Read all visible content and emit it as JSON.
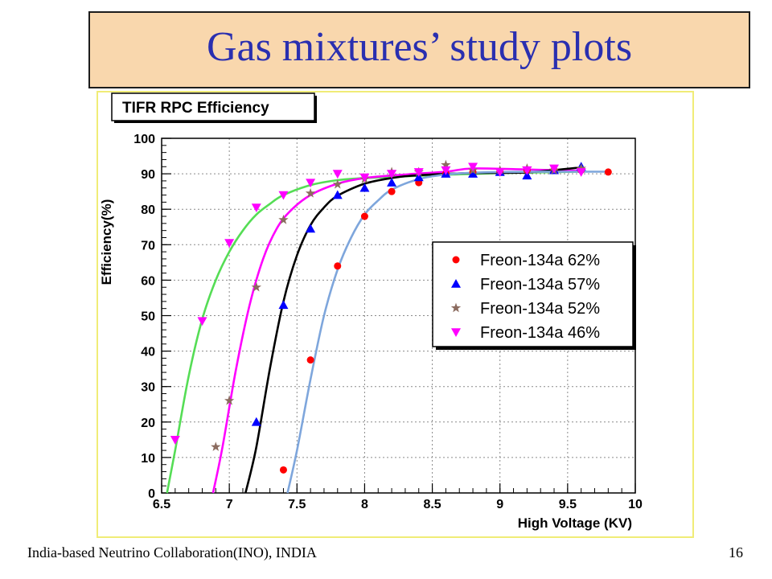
{
  "slide": {
    "title": "Gas mixtures’ study plots",
    "footer": "India-based Neutrino Collaboration(INO), INDIA",
    "page_number": "16"
  },
  "chart_data": {
    "type": "scatter",
    "title": "TIFR RPC Efficiency",
    "xlabel": "High Voltage (KV)",
    "ylabel": "Efficiency(%)",
    "xlim": [
      6.5,
      10
    ],
    "ylim": [
      0,
      100
    ],
    "x_ticks": [
      "6.5",
      "7",
      "7.5",
      "8",
      "8.5",
      "9",
      "9.5",
      "10"
    ],
    "y_ticks": [
      "0",
      "10",
      "20",
      "30",
      "40",
      "50",
      "60",
      "70",
      "80",
      "90",
      "100"
    ],
    "grid": true,
    "legend_position": "center-right",
    "series": [
      {
        "name": "Freon-134a  62%",
        "marker": "circle",
        "marker_color": "#ff0000",
        "fit_color": "#7ea6dc",
        "points": [
          [
            7.4,
            6.5
          ],
          [
            7.6,
            37.5
          ],
          [
            7.8,
            64
          ],
          [
            8.0,
            78
          ],
          [
            8.2,
            85
          ],
          [
            8.4,
            87.5
          ],
          [
            8.6,
            90
          ],
          [
            8.8,
            90.5
          ],
          [
            9.0,
            90.5
          ],
          [
            9.2,
            91
          ],
          [
            9.4,
            91
          ],
          [
            9.6,
            91
          ],
          [
            9.8,
            90.5
          ]
        ],
        "fit": [
          [
            7.43,
            0
          ],
          [
            7.5,
            12
          ],
          [
            7.6,
            32
          ],
          [
            7.7,
            50
          ],
          [
            7.8,
            63
          ],
          [
            7.9,
            72
          ],
          [
            8.0,
            78.5
          ],
          [
            8.1,
            82.5
          ],
          [
            8.2,
            85.5
          ],
          [
            8.4,
            88.5
          ],
          [
            8.6,
            89.8
          ],
          [
            8.8,
            90.3
          ],
          [
            9.0,
            90.5
          ],
          [
            9.5,
            90.6
          ],
          [
            9.8,
            90.6
          ]
        ]
      },
      {
        "name": "Freon-134a  57%",
        "marker": "triangle-up",
        "marker_color": "#0000ff",
        "fit_color": "#000000",
        "points": [
          [
            7.2,
            20
          ],
          [
            7.4,
            53
          ],
          [
            7.6,
            74.5
          ],
          [
            7.8,
            84
          ],
          [
            8.0,
            86
          ],
          [
            8.2,
            87.5
          ],
          [
            8.4,
            89
          ],
          [
            8.6,
            90
          ],
          [
            8.8,
            90
          ],
          [
            9.0,
            90.5
          ],
          [
            9.2,
            89.5
          ],
          [
            9.4,
            91
          ],
          [
            9.6,
            92
          ]
        ],
        "fit": [
          [
            7.12,
            0
          ],
          [
            7.2,
            13
          ],
          [
            7.3,
            35
          ],
          [
            7.4,
            54
          ],
          [
            7.5,
            67
          ],
          [
            7.6,
            75.5
          ],
          [
            7.7,
            80.5
          ],
          [
            7.8,
            83.8
          ],
          [
            8.0,
            87.2
          ],
          [
            8.2,
            88.8
          ],
          [
            8.4,
            89.6
          ],
          [
            8.8,
            90.2
          ],
          [
            9.2,
            90.4
          ],
          [
            9.6,
            91.8
          ]
        ]
      },
      {
        "name": "Freon-134a  52%",
        "marker": "star",
        "marker_color": "#8b6b5f",
        "fit_color": "#ff00ff",
        "points": [
          [
            6.9,
            13
          ],
          [
            7.0,
            26
          ],
          [
            7.2,
            58
          ],
          [
            7.4,
            77
          ],
          [
            7.6,
            84.5
          ],
          [
            7.8,
            87
          ],
          [
            8.0,
            88.5
          ],
          [
            8.2,
            90.5
          ],
          [
            8.4,
            90.5
          ],
          [
            8.6,
            92.5
          ],
          [
            8.8,
            91
          ],
          [
            9.0,
            91
          ],
          [
            9.2,
            91.5
          ],
          [
            9.4,
            91
          ],
          [
            9.6,
            91.5
          ]
        ],
        "fit": [
          [
            6.88,
            0
          ],
          [
            6.95,
            13
          ],
          [
            7.05,
            35
          ],
          [
            7.15,
            53
          ],
          [
            7.25,
            66
          ],
          [
            7.35,
            74.5
          ],
          [
            7.45,
            79.5
          ],
          [
            7.6,
            84
          ],
          [
            7.8,
            87.2
          ],
          [
            8.0,
            88.8
          ],
          [
            8.3,
            89.8
          ],
          [
            8.6,
            90.6
          ],
          [
            8.8,
            91.5
          ],
          [
            9.2,
            91.2
          ],
          [
            9.6,
            90.8
          ]
        ]
      },
      {
        "name": "Freon-134a  46%",
        "marker": "triangle-down",
        "marker_color": "#ff00ff",
        "fit_color": "#55dd55",
        "points": [
          [
            6.6,
            15
          ],
          [
            6.8,
            48.5
          ],
          [
            7.0,
            70.5
          ],
          [
            7.2,
            80.5
          ],
          [
            7.4,
            84
          ],
          [
            7.6,
            87.5
          ],
          [
            7.8,
            90
          ],
          [
            8.0,
            89
          ],
          [
            8.2,
            90
          ],
          [
            8.4,
            90.5
          ],
          [
            8.6,
            91
          ],
          [
            8.8,
            92
          ],
          [
            9.0,
            90.5
          ],
          [
            9.2,
            91
          ],
          [
            9.4,
            91.5
          ],
          [
            9.6,
            90.5
          ]
        ],
        "fit": [
          [
            6.54,
            0
          ],
          [
            6.6,
            12
          ],
          [
            6.7,
            33
          ],
          [
            6.8,
            49
          ],
          [
            6.9,
            60
          ],
          [
            7.0,
            68
          ],
          [
            7.1,
            74
          ],
          [
            7.2,
            78.5
          ],
          [
            7.3,
            81.5
          ],
          [
            7.4,
            84
          ],
          [
            7.6,
            86.8
          ],
          [
            7.8,
            88.2
          ],
          [
            8.0,
            88.8
          ],
          [
            8.5,
            89.6
          ],
          [
            9.0,
            90.2
          ],
          [
            9.6,
            90.6
          ]
        ]
      }
    ]
  }
}
